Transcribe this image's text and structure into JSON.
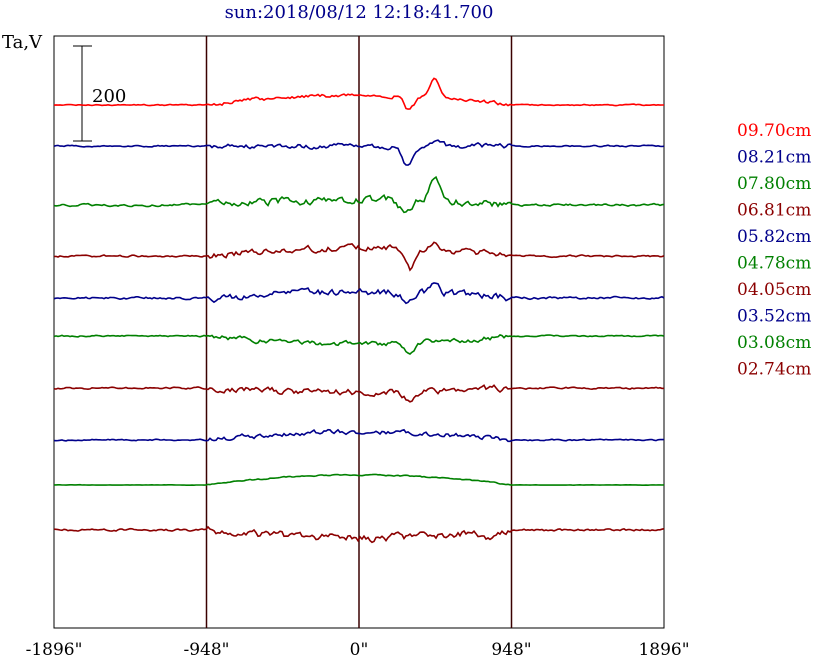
{
  "chart_data": {
    "type": "line",
    "title": "sun:2018/08/12 12:18:41.700",
    "ylabel": "Ta,V",
    "scale_bar_label": "200",
    "x_ticks": [
      {
        "value": -1896,
        "label": "-1896\""
      },
      {
        "value": -948,
        "label": "-948\""
      },
      {
        "value": 0,
        "label": "0\""
      },
      {
        "value": 948,
        "label": "948\""
      },
      {
        "value": 1896,
        "label": "1896\""
      }
    ],
    "xlim": [
      -1896,
      1896
    ],
    "vertical_grid": [
      -948,
      0,
      948
    ],
    "colors": {
      "red": "#ff0000",
      "blue": "#00008b",
      "green": "#008000",
      "darkred": "#8b0000"
    },
    "series": [
      {
        "name": "09.70cm",
        "color": "#ff0000",
        "baseline": 105,
        "amp": 3,
        "disk": 10,
        "feats": [
          [
            310,
            -14
          ],
          [
            470,
            20
          ]
        ]
      },
      {
        "name": "08.21cm",
        "color": "#00008b",
        "baseline": 146,
        "amp": 4,
        "disk": 0,
        "feats": [
          [
            300,
            -22
          ],
          [
            470,
            6
          ]
        ]
      },
      {
        "name": "07.80cm",
        "color": "#008000",
        "baseline": 205,
        "amp": 6,
        "disk": 5,
        "feats": [
          [
            290,
            -14
          ],
          [
            470,
            22
          ]
        ]
      },
      {
        "name": "06.81cm",
        "color": "#8b0000",
        "baseline": 256,
        "amp": 5,
        "disk": 8,
        "feats": [
          [
            320,
            -20
          ],
          [
            470,
            10
          ]
        ]
      },
      {
        "name": "05.82cm",
        "color": "#00008b",
        "baseline": 298,
        "amp": 6,
        "disk": 6,
        "feats": [
          [
            300,
            -12
          ],
          [
            470,
            10
          ]
        ]
      },
      {
        "name": "04.78cm",
        "color": "#008000",
        "baseline": 336,
        "amp": 4,
        "disk": -8,
        "feats": [
          [
            320,
            -12
          ]
        ]
      },
      {
        "name": "04.05cm",
        "color": "#8b0000",
        "baseline": 388,
        "amp": 5,
        "disk": -4,
        "feats": [
          [
            320,
            -10
          ]
        ]
      },
      {
        "name": "03.52cm",
        "color": "#00008b",
        "baseline": 440,
        "amp": 4,
        "disk": 8,
        "feats": []
      },
      {
        "name": "03.08cm",
        "color": "#008000",
        "baseline": 485,
        "amp": 1,
        "disk": 10,
        "feats": []
      },
      {
        "name": "02.74cm",
        "color": "#8b0000",
        "baseline": 530,
        "amp": 6,
        "disk": -8,
        "feats": [
          [
            800,
            -10
          ]
        ]
      }
    ]
  }
}
